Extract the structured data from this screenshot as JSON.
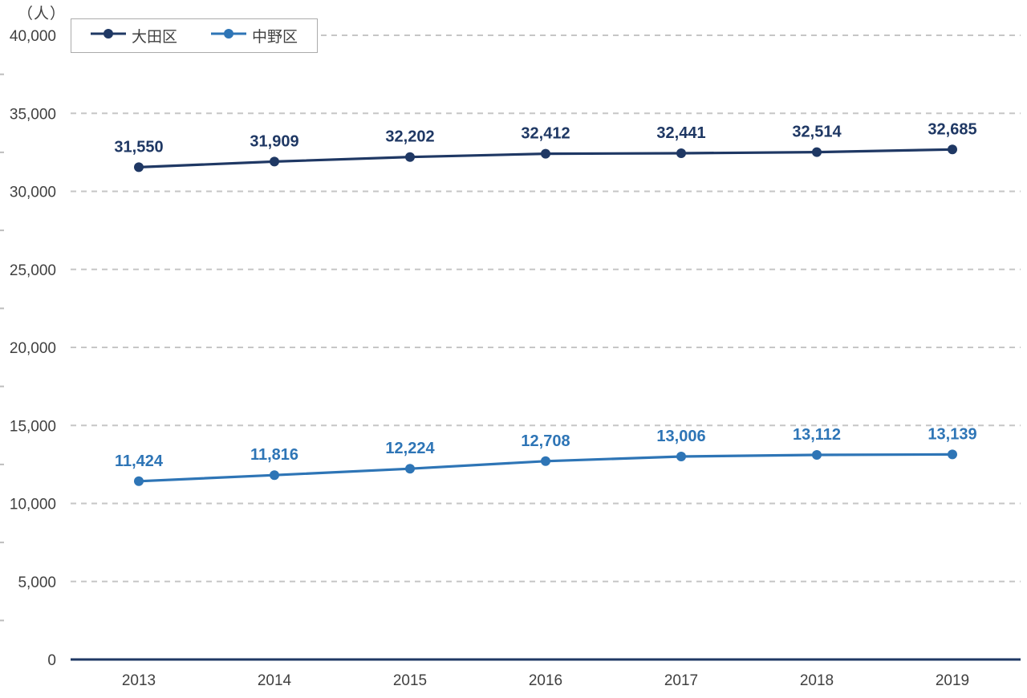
{
  "chart_data": {
    "type": "line",
    "unit_label": "（人）",
    "categories": [
      "2013",
      "2014",
      "2015",
      "2016",
      "2017",
      "2018",
      "2019"
    ],
    "series": [
      {
        "key": "ota-ward",
        "name": "大田区",
        "color": "#1F3864",
        "values": [
          31550,
          31909,
          32202,
          32412,
          32441,
          32514,
          32685
        ],
        "value_labels": [
          "31,550",
          "31,909",
          "32,202",
          "32,412",
          "32,441",
          "32,514",
          "32,685"
        ]
      },
      {
        "key": "nakano-ward",
        "name": "中野区",
        "color": "#2E75B6",
        "values": [
          11424,
          11816,
          12224,
          12708,
          13006,
          13112,
          13139
        ],
        "value_labels": [
          "11,424",
          "11,816",
          "12,224",
          "12,708",
          "13,006",
          "13,112",
          "13,139"
        ]
      }
    ],
    "y_axis": {
      "min": 0,
      "max": 40000,
      "major_step": 5000,
      "minor_step": 2500,
      "tick_labels": [
        "0",
        "5,000",
        "10,000",
        "15,000",
        "20,000",
        "25,000",
        "30,000",
        "35,000",
        "40,000"
      ]
    },
    "grid": "dashed-horizontal-major",
    "legend_position": "top-left",
    "colors": {
      "gridline": "#C6C6C6",
      "axis_line": "#1F3864",
      "tick_label": "#404040",
      "background": "#FFFFFF",
      "legend_border": "#ABABAB"
    }
  }
}
